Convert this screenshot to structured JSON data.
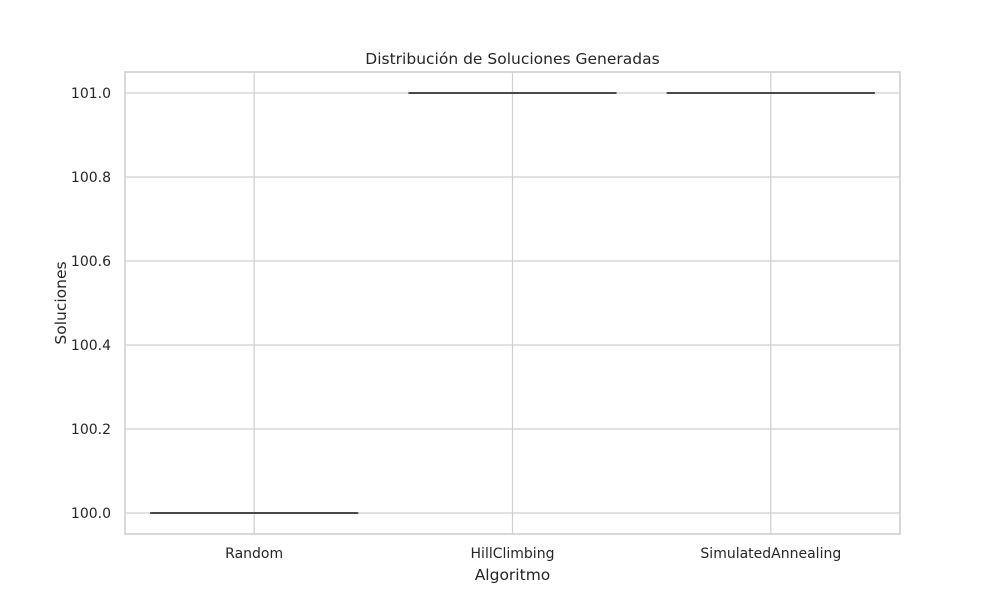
{
  "chart_data": {
    "type": "box",
    "title": "Distribución de Soluciones Generadas",
    "xlabel": "Algoritmo",
    "ylabel": "Soluciones",
    "categories": [
      "Random",
      "HillClimbing",
      "SimulatedAnnealing"
    ],
    "boxes": [
      {
        "category": "Random",
        "min": 100.0,
        "q1": 100.0,
        "median": 100.0,
        "q3": 100.0,
        "max": 100.0
      },
      {
        "category": "HillClimbing",
        "min": 101.0,
        "q1": 101.0,
        "median": 101.0,
        "q3": 101.0,
        "max": 101.0
      },
      {
        "category": "SimulatedAnnealing",
        "min": 101.0,
        "q1": 101.0,
        "median": 101.0,
        "q3": 101.0,
        "max": 101.0
      }
    ],
    "y_ticks": [
      100.0,
      100.2,
      100.4,
      100.6,
      100.8,
      101.0
    ],
    "y_tick_labels": [
      "100.0",
      "100.2",
      "100.4",
      "100.6",
      "100.8",
      "101.0"
    ],
    "ylim": [
      99.95,
      101.05
    ],
    "grid": true,
    "colors": {
      "grid": "#cfcfcf",
      "box_line": "#4a4a4a",
      "text": "#262626",
      "background": "#ffffff"
    }
  }
}
